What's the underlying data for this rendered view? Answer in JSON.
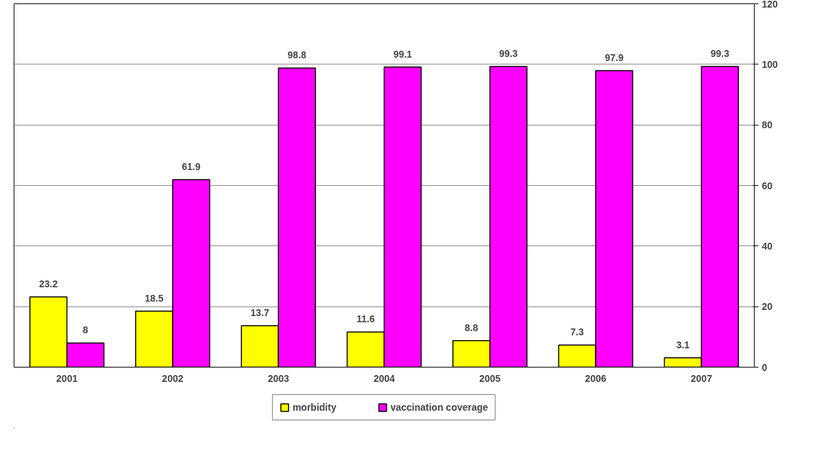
{
  "chart_data": {
    "type": "bar",
    "categories": [
      "2001",
      "2002",
      "2003",
      "2004",
      "2005",
      "2006",
      "2007"
    ],
    "series": [
      {
        "name": "morbidity",
        "color": "#ffff00",
        "values": [
          23.2,
          18.5,
          13.7,
          11.6,
          8.8,
          7.3,
          3.1
        ]
      },
      {
        "name": "vaccination coverage",
        "color": "#ff00ff",
        "values": [
          8,
          61.9,
          98.8,
          99.1,
          99.3,
          97.9,
          99.3
        ]
      }
    ],
    "ylim": [
      0,
      120
    ],
    "yticks": [
      0,
      20,
      40,
      60,
      80,
      100,
      120
    ],
    "grid": "y",
    "legend": "bottom",
    "data_labels": true
  }
}
